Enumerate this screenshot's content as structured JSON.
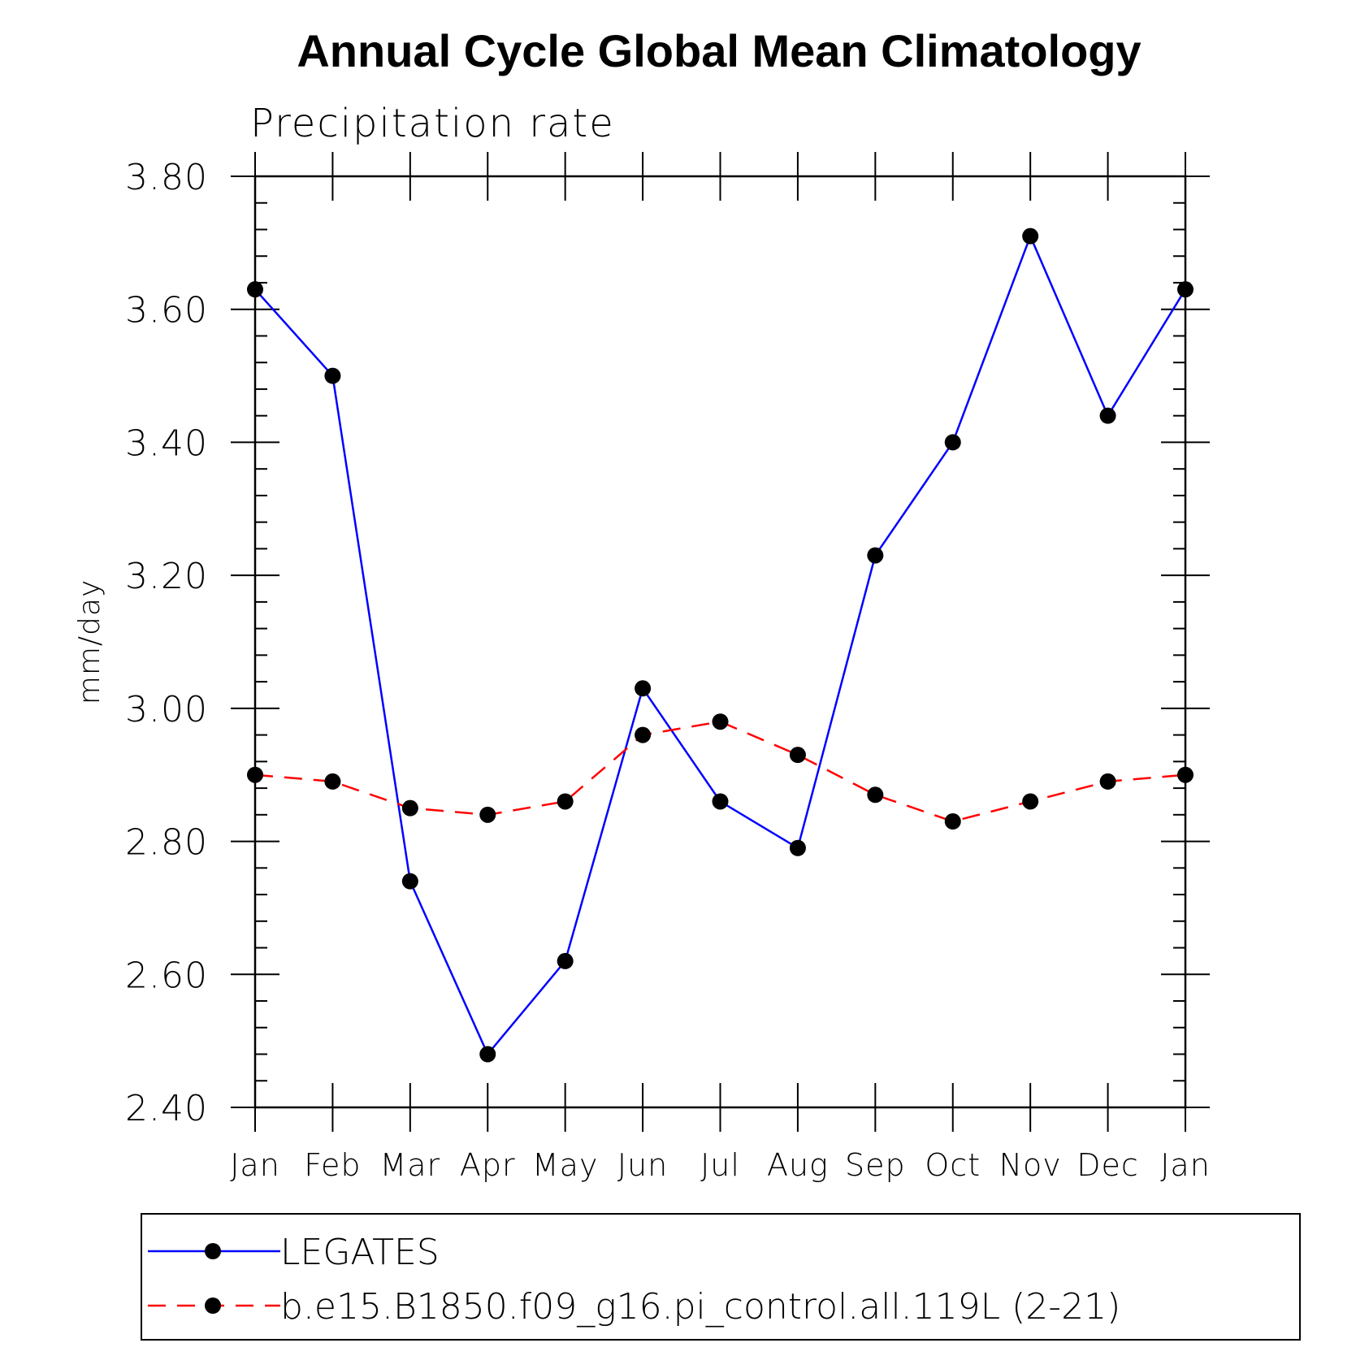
{
  "chart_data": {
    "type": "line",
    "title": "Annual Cycle Global Mean Climatology",
    "subtitle": "Precipitation rate",
    "ylabel": "mm/day",
    "xlabel": "",
    "ylim": [
      2.4,
      3.8
    ],
    "yticks": [
      "2.40",
      "2.60",
      "2.80",
      "3.00",
      "3.20",
      "3.40",
      "3.60",
      "3.80"
    ],
    "categories": [
      "Jan",
      "Feb",
      "Mar",
      "Apr",
      "May",
      "Jun",
      "Jul",
      "Aug",
      "Sep",
      "Oct",
      "Nov",
      "Dec",
      "Jan"
    ],
    "grid": false,
    "legend_position": "bottom",
    "series": [
      {
        "name": "LEGATES",
        "color": "#0000ff",
        "line_style": "solid",
        "marker": "filled-circle",
        "values": [
          3.63,
          3.5,
          2.74,
          2.48,
          2.62,
          3.03,
          2.86,
          2.79,
          3.23,
          3.4,
          3.71,
          3.44,
          3.63
        ]
      },
      {
        "name": "b.e15.B1850.f09_g16.pi_control.all.119L (2-21)",
        "color": "#ff0000",
        "line_style": "dashed",
        "marker": "filled-circle",
        "values": [
          2.9,
          2.89,
          2.85,
          2.84,
          2.86,
          2.96,
          2.98,
          2.93,
          2.87,
          2.83,
          2.86,
          2.89,
          2.9
        ]
      }
    ]
  }
}
